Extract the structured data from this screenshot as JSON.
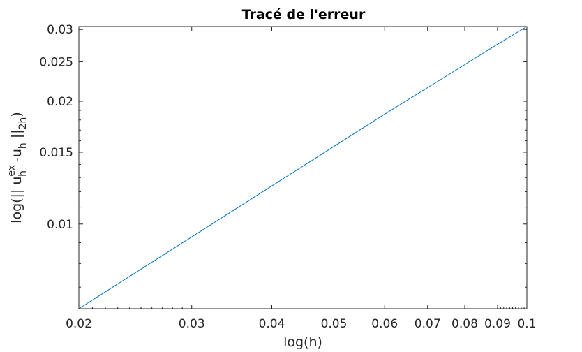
{
  "chart_data": {
    "type": "line",
    "title": "Tracé de l'erreur",
    "xlabel": "log(h)",
    "ylabel": {
      "prefix": "log(|| u",
      "sup1": "ex",
      "sub1": "h",
      "middle": " -u",
      "sub2": "h",
      "middle2": " ||",
      "sub3": "2h",
      "suffix": ")"
    },
    "xscale": "log",
    "yscale": "log",
    "xlim": [
      0.02,
      0.1
    ],
    "ylim": [
      0.0062,
      0.0305
    ],
    "grid": false,
    "x_ticks": [
      {
        "value": 0.02,
        "label": "0.02"
      },
      {
        "value": 0.03,
        "label": "0.03"
      },
      {
        "value": 0.04,
        "label": "0.04"
      },
      {
        "value": 0.05,
        "label": "0.05"
      },
      {
        "value": 0.06,
        "label": "0.06"
      },
      {
        "value": 0.07,
        "label": "0.07"
      },
      {
        "value": 0.08,
        "label": "0.08"
      },
      {
        "value": 0.09,
        "label": "0.09"
      },
      {
        "value": 0.1,
        "label": "0.1"
      }
    ],
    "y_ticks": [
      {
        "value": 0.01,
        "label": "0.01"
      },
      {
        "value": 0.015,
        "label": "0.015"
      },
      {
        "value": 0.02,
        "label": "0.02"
      },
      {
        "value": 0.025,
        "label": "0.025"
      },
      {
        "value": 0.03,
        "label": "0.03"
      }
    ],
    "series": [
      {
        "color": "#0072BD",
        "x": [
          0.02,
          0.03,
          0.04,
          0.05,
          0.06,
          0.07,
          0.08,
          0.09,
          0.1
        ],
        "y": [
          0.0062,
          0.0093,
          0.0124,
          0.0155,
          0.0186,
          0.0216,
          0.0246,
          0.0276,
          0.0305
        ]
      }
    ]
  }
}
